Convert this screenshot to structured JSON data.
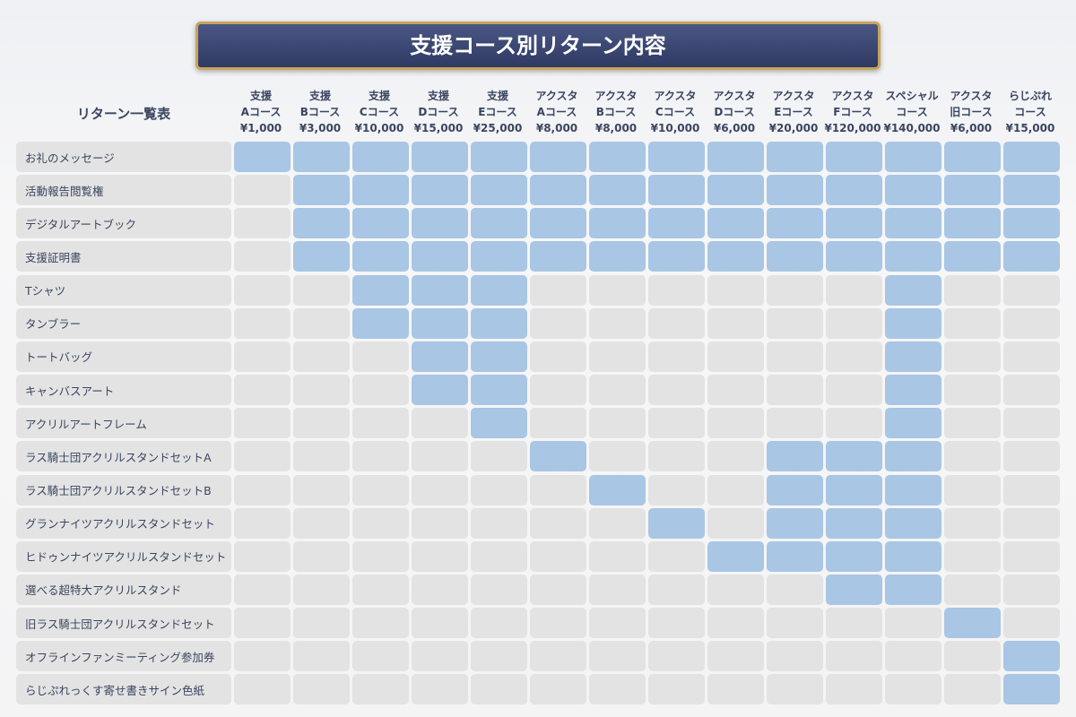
{
  "title": "支援コース別リターン内容",
  "table": {
    "corner": "リターン一覧表",
    "columns": [
      {
        "lines": [
          "支援",
          "Aコース"
        ],
        "price": "¥1,000"
      },
      {
        "lines": [
          "支援",
          "Bコース"
        ],
        "price": "¥3,000"
      },
      {
        "lines": [
          "支援",
          "Cコース"
        ],
        "price": "¥10,000"
      },
      {
        "lines": [
          "支援",
          "Dコース"
        ],
        "price": "¥15,000"
      },
      {
        "lines": [
          "支援",
          "Eコース"
        ],
        "price": "¥25,000"
      },
      {
        "lines": [
          "アクスタ",
          "Aコース"
        ],
        "price": "¥8,000"
      },
      {
        "lines": [
          "アクスタ",
          "Bコース"
        ],
        "price": "¥8,000"
      },
      {
        "lines": [
          "アクスタ",
          "Cコース"
        ],
        "price": "¥10,000"
      },
      {
        "lines": [
          "アクスタ",
          "Dコース"
        ],
        "price": "¥6,000"
      },
      {
        "lines": [
          "アクスタ",
          "Eコース"
        ],
        "price": "¥20,000"
      },
      {
        "lines": [
          "アクスタ",
          "Fコース"
        ],
        "price": "¥120,000"
      },
      {
        "lines": [
          "スペシャル",
          "コース"
        ],
        "price": "¥140,000"
      },
      {
        "lines": [
          "アクスタ",
          "旧コース"
        ],
        "price": "¥6,000"
      },
      {
        "lines": [
          "らじぷれ",
          "コース"
        ],
        "price": "¥15,000"
      }
    ],
    "rows": [
      {
        "label": "お礼のメッセージ",
        "cells": [
          true,
          true,
          true,
          true,
          true,
          true,
          true,
          true,
          true,
          true,
          true,
          true,
          true,
          true
        ]
      },
      {
        "label": "活動報告閲覧権",
        "cells": [
          false,
          true,
          true,
          true,
          true,
          true,
          true,
          true,
          true,
          true,
          true,
          true,
          true,
          true
        ]
      },
      {
        "label": "デジタルアートブック",
        "cells": [
          false,
          true,
          true,
          true,
          true,
          true,
          true,
          true,
          true,
          true,
          true,
          true,
          true,
          true
        ]
      },
      {
        "label": "支援証明書",
        "cells": [
          false,
          true,
          true,
          true,
          true,
          true,
          true,
          true,
          true,
          true,
          true,
          true,
          true,
          true
        ]
      },
      {
        "label": "Tシャツ",
        "cells": [
          false,
          false,
          true,
          true,
          true,
          false,
          false,
          false,
          false,
          false,
          false,
          true,
          false,
          false
        ]
      },
      {
        "label": "タンブラー",
        "cells": [
          false,
          false,
          true,
          true,
          true,
          false,
          false,
          false,
          false,
          false,
          false,
          true,
          false,
          false
        ]
      },
      {
        "label": "トートバッグ",
        "cells": [
          false,
          false,
          false,
          true,
          true,
          false,
          false,
          false,
          false,
          false,
          false,
          true,
          false,
          false
        ]
      },
      {
        "label": "キャンバスアート",
        "cells": [
          false,
          false,
          false,
          true,
          true,
          false,
          false,
          false,
          false,
          false,
          false,
          true,
          false,
          false
        ]
      },
      {
        "label": "アクリルアートフレーム",
        "cells": [
          false,
          false,
          false,
          false,
          true,
          false,
          false,
          false,
          false,
          false,
          false,
          true,
          false,
          false
        ]
      },
      {
        "label": "ラス騎士団アクリルスタンドセットA",
        "cells": [
          false,
          false,
          false,
          false,
          false,
          true,
          false,
          false,
          false,
          true,
          true,
          true,
          false,
          false
        ]
      },
      {
        "label": "ラス騎士団アクリルスタンドセットB",
        "cells": [
          false,
          false,
          false,
          false,
          false,
          false,
          true,
          false,
          false,
          true,
          true,
          true,
          false,
          false
        ]
      },
      {
        "label": "グランナイツアクリルスタンドセット",
        "cells": [
          false,
          false,
          false,
          false,
          false,
          false,
          false,
          true,
          false,
          true,
          true,
          true,
          false,
          false
        ]
      },
      {
        "label": "ヒドゥンナイツアクリルスタンドセット",
        "cells": [
          false,
          false,
          false,
          false,
          false,
          false,
          false,
          false,
          true,
          true,
          true,
          true,
          false,
          false
        ]
      },
      {
        "label": "選べる超特大アクリルスタンド",
        "cells": [
          false,
          false,
          false,
          false,
          false,
          false,
          false,
          false,
          false,
          false,
          true,
          true,
          false,
          false
        ]
      },
      {
        "label": "旧ラス騎士団アクリルスタンドセット",
        "cells": [
          false,
          false,
          false,
          false,
          false,
          false,
          false,
          false,
          false,
          false,
          false,
          false,
          true,
          false
        ]
      },
      {
        "label": "オフラインファンミーティング参加券",
        "cells": [
          false,
          false,
          false,
          false,
          false,
          false,
          false,
          false,
          false,
          false,
          false,
          false,
          false,
          true
        ]
      },
      {
        "label": "らじぷれっくす寄せ書きサイン色紙",
        "cells": [
          false,
          false,
          false,
          false,
          false,
          false,
          false,
          false,
          false,
          false,
          false,
          false,
          false,
          true
        ]
      }
    ]
  }
}
